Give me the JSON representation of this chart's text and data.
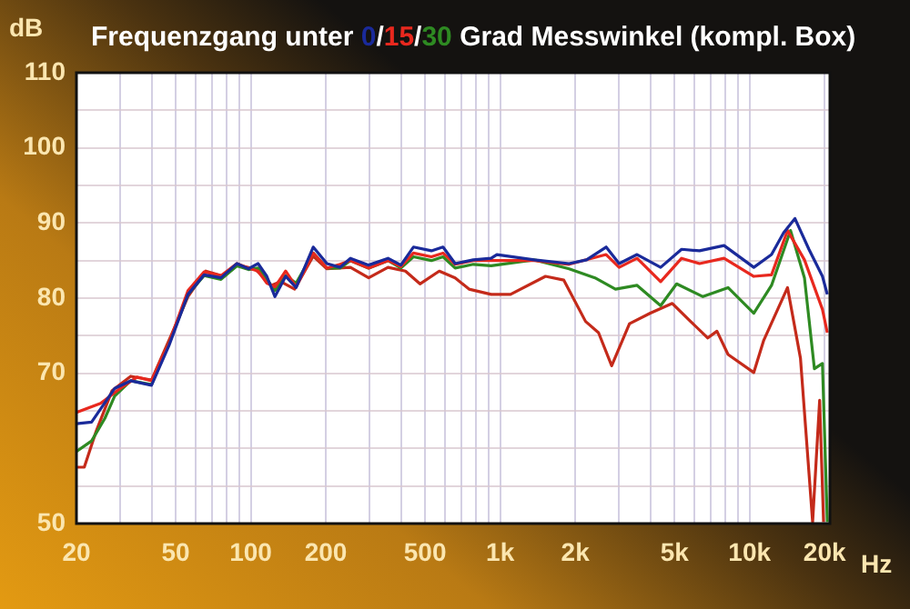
{
  "chart_data": {
    "type": "line",
    "title": "Frequenzgang unter 0/15/30 Grad Messwinkel (kompl. Box)",
    "xlabel": "Hz",
    "ylabel": "dB",
    "log": "x",
    "grid": true,
    "legend": false,
    "marker": "none",
    "line_style": "solid",
    "xlim": [
      20,
      21000
    ],
    "ylim": [
      50,
      110
    ],
    "xticks": [
      20,
      {
        "value": 30,
        "label": null
      },
      {
        "value": 40,
        "label": null
      },
      50,
      {
        "value": 60,
        "label": null
      },
      {
        "value": 70,
        "label": null
      },
      {
        "value": 80,
        "label": null
      },
      {
        "value": 90,
        "label": null
      },
      100,
      200,
      {
        "value": 300,
        "label": null
      },
      {
        "value": 400,
        "label": null
      },
      500,
      {
        "value": 600,
        "label": null
      },
      {
        "value": 700,
        "label": null
      },
      {
        "value": 800,
        "label": null
      },
      {
        "value": 900,
        "label": null
      },
      {
        "value": 1000,
        "label": "1k"
      },
      {
        "value": 2000,
        "label": "2k"
      },
      {
        "value": 3000,
        "label": null
      },
      {
        "value": 4000,
        "label": null
      },
      {
        "value": 5000,
        "label": "5k"
      },
      {
        "value": 6000,
        "label": null
      },
      {
        "value": 7000,
        "label": null
      },
      {
        "value": 8000,
        "label": null
      },
      {
        "value": 9000,
        "label": null
      },
      {
        "value": 10000,
        "label": "10k"
      },
      {
        "value": 20000,
        "label": "20k"
      }
    ],
    "yticks": [
      50,
      {
        "value": 55,
        "label": null
      },
      {
        "value": 60,
        "label": null
      },
      {
        "value": 65,
        "label": null
      },
      70,
      {
        "value": 75,
        "label": null
      },
      80,
      {
        "value": 85,
        "label": null
      },
      90,
      {
        "value": 95,
        "label": null
      },
      100,
      {
        "value": 105,
        "label": null
      },
      110
    ],
    "series": [
      {
        "color": "#1a2a9a",
        "x": [
          20,
          23,
          28.5,
          33,
          40,
          47,
          56,
          65,
          76,
          88,
          98,
          107,
          116,
          125,
          138,
          152,
          178,
          202,
          228,
          251,
          297,
          355,
          400,
          449,
          530,
          590,
          660,
          780,
          920,
          970,
          1370,
          1890,
          2220,
          2660,
          3000,
          3540,
          4400,
          5340,
          6300,
          7900,
          10400,
          12250,
          13700,
          15200,
          17300,
          19600,
          20500
        ],
        "values": [
          63.3,
          63.5,
          68,
          69,
          68.4,
          73.7,
          80.5,
          83.1,
          82.7,
          84.6,
          83.9,
          84.6,
          82.9,
          80.2,
          82.9,
          81.4,
          86.8,
          84.6,
          84.1,
          85.3,
          84.4,
          85.3,
          84.4,
          86.8,
          86.3,
          86.8,
          84.6,
          85.1,
          85.3,
          85.8,
          85.1,
          84.6,
          85.1,
          86.8,
          84.6,
          85.8,
          84.1,
          86.5,
          86.3,
          87,
          84.1,
          85.8,
          88.7,
          90.6,
          86.5,
          82.9,
          80.5
        ]
      },
      {
        "color": "#e8281e",
        "x": [
          20,
          25,
          30,
          35,
          40,
          47,
          56,
          65,
          76,
          88,
          98,
          107,
          116,
          125,
          138,
          152,
          178,
          202,
          228,
          251,
          297,
          355,
          400,
          449,
          530,
          590,
          660,
          780,
          920,
          1370,
          1890,
          2660,
          3000,
          3540,
          4400,
          5340,
          6300,
          7900,
          10400,
          12250,
          14200,
          16600,
          19600,
          20500
        ],
        "values": [
          64.8,
          66,
          68,
          69.5,
          69,
          74,
          81,
          83.5,
          83,
          84.6,
          84,
          83.6,
          82,
          81.5,
          83.6,
          81.5,
          86,
          84,
          84.5,
          85,
          84,
          85,
          84.2,
          86,
          85.5,
          86,
          84.5,
          85,
          85,
          85,
          84.5,
          85.8,
          84.1,
          85.3,
          82.2,
          85.3,
          84.6,
          85.3,
          82.9,
          83.1,
          89,
          85.1,
          78.5,
          75.4
        ]
      },
      {
        "color": "#2e8a22",
        "x": [
          20,
          23,
          26,
          28.5,
          33,
          40,
          47,
          56,
          65,
          76,
          88,
          98,
          107,
          116,
          125,
          138,
          152,
          178,
          202,
          228,
          251,
          297,
          355,
          400,
          449,
          530,
          590,
          660,
          780,
          920,
          1370,
          1890,
          2400,
          2900,
          3540,
          4400,
          5100,
          6500,
          8200,
          10400,
          12250,
          14600,
          16600,
          18200,
          19600,
          20500
        ],
        "values": [
          59.6,
          61,
          64,
          67,
          69,
          68.5,
          74,
          80.5,
          83,
          82.5,
          84.3,
          83.8,
          84,
          82.5,
          81,
          83,
          82,
          86,
          84,
          84,
          85,
          84,
          85,
          84,
          85.5,
          85,
          85.5,
          84,
          84.5,
          84.3,
          85.1,
          83.9,
          82.7,
          81.2,
          81.7,
          79,
          81.9,
          80.2,
          81.4,
          78,
          81.7,
          89,
          82.7,
          70.6,
          71.3,
          50.2
        ]
      },
      {
        "color": "#c42a1a",
        "x": [
          20,
          21.5,
          24,
          27.8,
          33,
          40,
          47,
          56,
          66,
          78,
          88,
          104,
          121,
          132,
          150,
          178,
          202,
          251,
          297,
          355,
          417,
          477,
          570,
          660,
          750,
          920,
          1100,
          1520,
          1800,
          2200,
          2480,
          2800,
          3300,
          4000,
          4900,
          5800,
          6800,
          7400,
          8200,
          10400,
          11400,
          14200,
          16000,
          17900,
          19100,
          19800
        ],
        "values": [
          57.5,
          57.5,
          62.3,
          67.7,
          69.6,
          69.1,
          74.4,
          80.2,
          83.6,
          82.9,
          84.4,
          83.9,
          81.7,
          82.2,
          81.2,
          85.6,
          83.9,
          84.1,
          82.7,
          84.1,
          83.6,
          81.9,
          83.6,
          82.7,
          81.2,
          80.5,
          80.5,
          82.9,
          82.4,
          76.9,
          75.4,
          71,
          76.6,
          78,
          79.3,
          76.9,
          74.7,
          75.6,
          72.5,
          70.1,
          74.4,
          81.4,
          72,
          50.2,
          66.4,
          50.2
        ]
      }
    ]
  }
}
